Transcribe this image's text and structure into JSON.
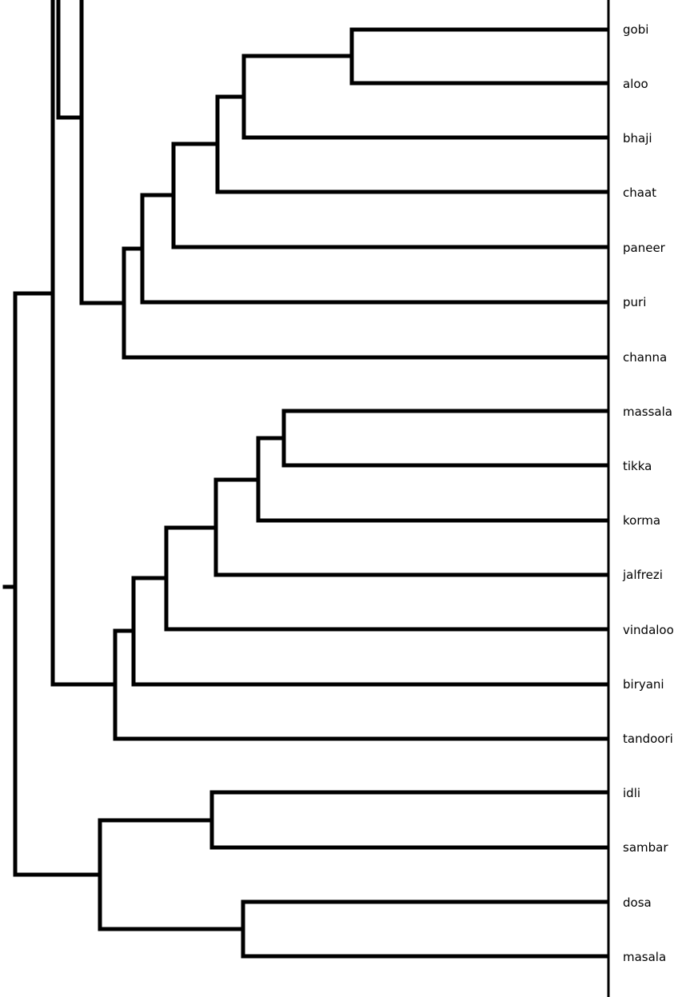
{
  "dendrogram": {
    "leaves": [
      "gobi",
      "aloo",
      "bhaji",
      "chaat",
      "paneer",
      "puri",
      "channa",
      "massala",
      "tikka",
      "korma",
      "jalfrezi",
      "vindaloo",
      "biryani",
      "tandoori",
      "idli",
      "sambar",
      "dosa",
      "masala"
    ],
    "colors": {
      "line": "#000000",
      "label": "#000000",
      "background": "#ffffff"
    }
  }
}
